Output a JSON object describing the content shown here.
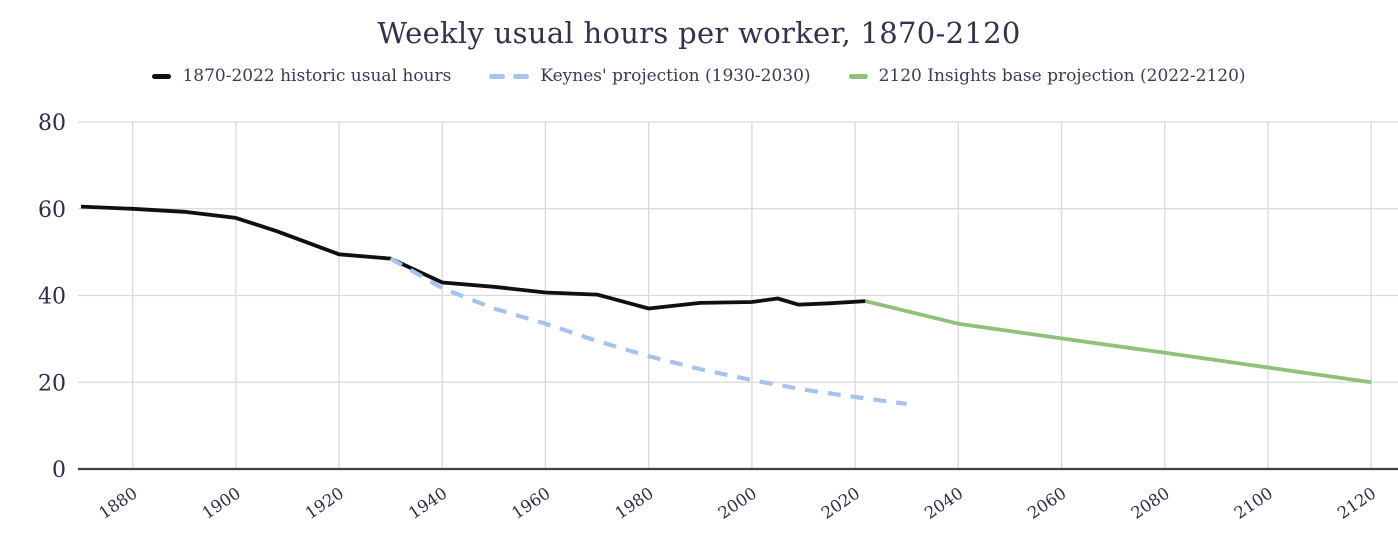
{
  "title": "Weekly usual hours per worker, 1870-2120",
  "legend": [
    {
      "label": "1870-2022 historic usual hours",
      "color": "#101010",
      "style": "solid"
    },
    {
      "label": "Keynes' projection (1930-2030)",
      "color": "#a6c3ed",
      "style": "dashed"
    },
    {
      "label": "2120 Insights base projection (2022-2120)",
      "color": "#90c07a",
      "style": "solid"
    }
  ],
  "colors": {
    "title_text": "#32324e",
    "legend_text": "#3a3a56",
    "tick_text": "#2c2c49",
    "gridline": "#d9d9d9",
    "axis_line": "#3f3f3f",
    "historic": "#101010",
    "keynes": "#a6c3ed",
    "projection": "#90c07a"
  },
  "chart_data": {
    "type": "line",
    "title": "Weekly usual hours per worker, 1870-2120",
    "xlabel": "",
    "ylabel": "",
    "xlim": [
      1870,
      2125
    ],
    "ylim": [
      0,
      80
    ],
    "grid": true,
    "legend_position": "top",
    "x_ticks": [
      1880,
      1900,
      1920,
      1940,
      1960,
      1980,
      2000,
      2020,
      2040,
      2060,
      2080,
      2100,
      2120
    ],
    "y_ticks": [
      0,
      20,
      40,
      60,
      80
    ],
    "series": [
      {
        "name": "1870-2022 historic usual hours",
        "color": "#101010",
        "dash": null,
        "points": [
          [
            1870,
            60.5
          ],
          [
            1880,
            60
          ],
          [
            1890,
            59.3
          ],
          [
            1900,
            57.9
          ],
          [
            1908,
            54.8
          ],
          [
            1920,
            49.5
          ],
          [
            1930,
            48.5
          ],
          [
            1940,
            43
          ],
          [
            1950,
            42
          ],
          [
            1960,
            40.7
          ],
          [
            1970,
            40.2
          ],
          [
            1980,
            37
          ],
          [
            1990,
            38.3
          ],
          [
            2000,
            38.5
          ],
          [
            2005,
            39.3
          ],
          [
            2009,
            37.9
          ],
          [
            2015,
            38.2
          ],
          [
            2022,
            38.7
          ]
        ]
      },
      {
        "name": "Keynes' projection (1930-2030)",
        "color": "#a6c3ed",
        "dash": "13 10",
        "points": [
          [
            1930,
            48.5
          ],
          [
            1940,
            41.7
          ],
          [
            1950,
            37
          ],
          [
            1960,
            33.5
          ],
          [
            1970,
            29.5
          ],
          [
            1980,
            26
          ],
          [
            1990,
            23
          ],
          [
            2000,
            20.5
          ],
          [
            2010,
            18.3
          ],
          [
            2020,
            16.6
          ],
          [
            2030,
            15
          ]
        ]
      },
      {
        "name": "2120 Insights base projection (2022-2120)",
        "color": "#90c07a",
        "dash": null,
        "points": [
          [
            2022,
            38.7
          ],
          [
            2040,
            33.5
          ],
          [
            2060,
            30.1
          ],
          [
            2080,
            26.8
          ],
          [
            2100,
            23.4
          ],
          [
            2120,
            20
          ]
        ]
      }
    ]
  }
}
